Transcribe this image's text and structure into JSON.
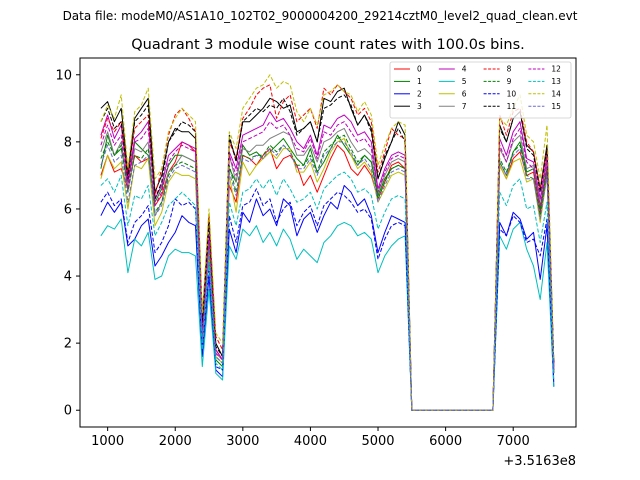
{
  "figure": {
    "suptitle": "Data file: modeM0/AS1A10_102T02_9000004200_29214cztM0_level2_quad_clean.evt"
  },
  "chart_data": {
    "type": "line",
    "title": "Quadrant 3 module wise count rates with 100.0s bins.",
    "xlabel": "",
    "ylabel": "",
    "x_offset_label": "+3.5163e8",
    "xlim": [
      591,
      7929
    ],
    "ylim": [
      -0.5,
      10.5
    ],
    "xticks": [
      1000,
      2000,
      3000,
      4000,
      5000,
      6000,
      7000
    ],
    "yticks": [
      0,
      2,
      4,
      6,
      8,
      10
    ],
    "grid": false,
    "legend": {
      "placement": "top-right",
      "ncol": 4
    },
    "x": [
      900,
      1000,
      1100,
      1200,
      1300,
      1400,
      1500,
      1600,
      1700,
      1800,
      1900,
      2000,
      2100,
      2200,
      2300,
      2400,
      2500,
      2600,
      2700,
      2800,
      2900,
      3000,
      3100,
      3200,
      3300,
      3400,
      3500,
      3600,
      3700,
      3800,
      3900,
      4000,
      4100,
      4200,
      4300,
      4400,
      4500,
      4600,
      4700,
      4800,
      4900,
      5000,
      5100,
      5200,
      5300,
      5400,
      5500,
      5600,
      5700,
      5800,
      5900,
      6000,
      6100,
      6200,
      6300,
      6400,
      6500,
      6600,
      6700,
      6800,
      6900,
      7000,
      7100,
      7200,
      7300,
      7400,
      7500,
      7600
    ],
    "series": [
      {
        "name": "0",
        "color": "#ff0000",
        "dash": false,
        "values": [
          7.0,
          7.6,
          7.1,
          7.2,
          6.6,
          7.6,
          7.4,
          7.5,
          6.1,
          6.4,
          7.1,
          7.4,
          8.0,
          7.9,
          7.7,
          2.3,
          4.9,
          1.8,
          1.5,
          6.7,
          6.2,
          7.6,
          7.5,
          7.3,
          7.6,
          7.8,
          7.2,
          7.5,
          7.6,
          7.3,
          6.7,
          7.0,
          6.5,
          7.0,
          7.5,
          7.9,
          7.7,
          7.2,
          7.0,
          7.3,
          7.0,
          6.3,
          6.8,
          7.3,
          7.4,
          7.2,
          0.0,
          0.0,
          0.0,
          0.0,
          0.0,
          0.0,
          0.0,
          0.0,
          0.0,
          0.0,
          0.0,
          0.0,
          0.0,
          7.3,
          6.9,
          7.5,
          7.7,
          7.0,
          7.1,
          5.9,
          7.2,
          1.2
        ]
      },
      {
        "name": "1",
        "color": "#008000",
        "dash": false,
        "values": [
          7.2,
          8.2,
          7.6,
          7.8,
          6.8,
          8.0,
          7.8,
          7.6,
          6.2,
          6.6,
          7.3,
          7.6,
          7.6,
          7.5,
          7.4,
          2.0,
          4.6,
          1.5,
          1.3,
          7.2,
          6.8,
          7.9,
          7.6,
          7.7,
          7.5,
          7.7,
          7.9,
          8.1,
          7.8,
          7.5,
          7.3,
          7.8,
          7.1,
          7.4,
          7.8,
          8.2,
          7.9,
          7.6,
          7.3,
          7.6,
          7.4,
          6.4,
          6.9,
          7.2,
          7.3,
          7.2,
          0.0,
          0.0,
          0.0,
          0.0,
          0.0,
          0.0,
          0.0,
          0.0,
          0.0,
          0.0,
          0.0,
          0.0,
          0.0,
          7.4,
          7.0,
          7.7,
          8.0,
          7.1,
          7.2,
          6.0,
          7.3,
          1.1
        ]
      },
      {
        "name": "2",
        "color": "#0000ff",
        "dash": false,
        "values": [
          5.8,
          6.2,
          5.9,
          6.2,
          4.9,
          5.1,
          5.5,
          5.7,
          4.3,
          4.6,
          5.0,
          5.3,
          5.8,
          5.6,
          5.5,
          1.6,
          4.0,
          1.2,
          1.0,
          5.4,
          4.7,
          5.9,
          5.6,
          6.3,
          5.8,
          6.0,
          5.5,
          6.3,
          6.1,
          5.2,
          5.7,
          5.9,
          5.3,
          5.8,
          6.2,
          6.0,
          6.7,
          6.5,
          6.1,
          6.3,
          5.8,
          4.7,
          5.3,
          5.8,
          5.7,
          5.6,
          0.0,
          0.0,
          0.0,
          0.0,
          0.0,
          0.0,
          0.0,
          0.0,
          0.0,
          0.0,
          0.0,
          0.0,
          0.0,
          5.6,
          5.2,
          5.9,
          5.7,
          5.1,
          5.3,
          3.9,
          5.5,
          0.7
        ]
      },
      {
        "name": "3",
        "color": "#000000",
        "dash": false,
        "values": [
          9.0,
          9.2,
          8.6,
          9.0,
          7.1,
          8.7,
          9.0,
          9.3,
          6.5,
          7.0,
          8.0,
          8.4,
          8.3,
          8.3,
          8.1,
          2.7,
          5.8,
          2.0,
          1.6,
          8.1,
          7.5,
          8.6,
          8.6,
          8.8,
          9.0,
          9.3,
          9.2,
          9.0,
          9.1,
          8.3,
          8.4,
          8.6,
          8.0,
          9.3,
          9.2,
          9.5,
          9.6,
          9.0,
          8.5,
          8.8,
          8.4,
          6.9,
          7.5,
          8.0,
          8.6,
          8.2,
          0.0,
          0.0,
          0.0,
          0.0,
          0.0,
          0.0,
          0.0,
          0.0,
          0.0,
          0.0,
          0.0,
          0.0,
          0.0,
          8.5,
          8.0,
          8.7,
          8.9,
          7.9,
          7.7,
          6.6,
          7.9,
          1.4
        ]
      },
      {
        "name": "4",
        "color": "#bf00bf",
        "dash": false,
        "values": [
          8.2,
          8.8,
          8.1,
          8.5,
          6.8,
          8.1,
          8.3,
          8.6,
          6.3,
          6.7,
          7.6,
          7.8,
          8.0,
          7.9,
          7.8,
          2.3,
          5.2,
          1.8,
          1.5,
          7.7,
          7.2,
          8.2,
          8.3,
          8.4,
          8.5,
          8.9,
          8.6,
          8.7,
          8.4,
          8.0,
          7.8,
          8.2,
          7.6,
          8.5,
          8.4,
          8.7,
          8.8,
          8.6,
          8.2,
          8.3,
          8.0,
          6.6,
          7.2,
          7.6,
          7.7,
          7.6,
          0.0,
          0.0,
          0.0,
          0.0,
          0.0,
          0.0,
          0.0,
          0.0,
          0.0,
          0.0,
          0.0,
          0.0,
          0.0,
          8.1,
          7.6,
          8.3,
          8.6,
          7.5,
          7.4,
          6.3,
          7.6,
          1.3
        ]
      },
      {
        "name": "5",
        "color": "#00bfbf",
        "dash": false,
        "values": [
          5.2,
          5.5,
          5.4,
          5.7,
          4.1,
          5.1,
          4.9,
          5.3,
          3.9,
          4.0,
          4.6,
          4.8,
          4.7,
          4.7,
          4.6,
          1.3,
          3.6,
          1.1,
          0.9,
          4.9,
          4.5,
          5.4,
          5.2,
          5.5,
          5.0,
          5.3,
          4.9,
          5.4,
          5.1,
          4.5,
          4.8,
          4.6,
          4.4,
          5.0,
          5.2,
          5.5,
          5.6,
          5.5,
          5.2,
          5.3,
          5.1,
          4.1,
          4.6,
          4.9,
          5.1,
          5.2,
          0.0,
          0.0,
          0.0,
          0.0,
          0.0,
          0.0,
          0.0,
          0.0,
          0.0,
          0.0,
          0.0,
          0.0,
          0.0,
          5.2,
          4.8,
          5.4,
          5.6,
          4.8,
          4.3,
          3.3,
          5.0,
          0.7
        ]
      },
      {
        "name": "6",
        "color": "#bfbf00",
        "dash": false,
        "values": [
          6.9,
          7.6,
          7.2,
          7.4,
          6.0,
          7.3,
          7.2,
          7.5,
          5.5,
          5.9,
          6.8,
          7.1,
          7.0,
          7.0,
          6.9,
          2.1,
          4.7,
          1.6,
          1.4,
          7.0,
          5.9,
          7.4,
          7.0,
          7.3,
          7.5,
          7.7,
          7.5,
          7.8,
          7.8,
          7.1,
          7.1,
          7.4,
          6.8,
          7.2,
          7.7,
          8.0,
          8.1,
          7.6,
          7.2,
          7.4,
          7.1,
          6.2,
          6.6,
          7.0,
          7.1,
          7.0,
          0.0,
          0.0,
          0.0,
          0.0,
          0.0,
          0.0,
          0.0,
          0.0,
          0.0,
          0.0,
          0.0,
          0.0,
          0.0,
          7.3,
          6.9,
          7.4,
          7.5,
          6.8,
          6.9,
          5.6,
          7.0,
          1.1
        ]
      },
      {
        "name": "7",
        "color": "#808080",
        "dash": false,
        "values": [
          7.7,
          8.3,
          7.6,
          8.0,
          6.5,
          7.8,
          7.7,
          8.0,
          5.8,
          6.2,
          7.1,
          7.3,
          7.6,
          7.5,
          7.4,
          2.2,
          5.1,
          1.7,
          1.5,
          7.6,
          6.8,
          7.8,
          7.7,
          7.9,
          7.9,
          8.1,
          8.2,
          8.3,
          8.2,
          7.6,
          7.6,
          7.9,
          7.4,
          8.0,
          8.1,
          8.3,
          8.4,
          8.0,
          7.7,
          7.8,
          7.6,
          6.5,
          7.0,
          7.4,
          7.5,
          7.4,
          0.0,
          0.0,
          0.0,
          0.0,
          0.0,
          0.0,
          0.0,
          0.0,
          0.0,
          0.0,
          0.0,
          0.0,
          0.0,
          7.8,
          7.4,
          8.0,
          8.2,
          7.2,
          7.3,
          6.1,
          7.4,
          1.2
        ]
      },
      {
        "name": "8",
        "color": "#ff0000",
        "dash": true,
        "values": [
          8.1,
          8.7,
          8.3,
          8.6,
          7.0,
          8.4,
          8.6,
          8.8,
          6.4,
          7.2,
          8.2,
          8.8,
          9.0,
          8.7,
          8.3,
          2.8,
          5.8,
          2.2,
          1.8,
          8.0,
          7.5,
          8.7,
          9.0,
          9.4,
          9.6,
          9.7,
          8.7,
          9.2,
          9.4,
          8.6,
          8.8,
          9.0,
          8.4,
          9.6,
          9.4,
          9.7,
          9.5,
          9.3,
          8.8,
          9.0,
          8.6,
          7.1,
          7.7,
          8.4,
          8.2,
          8.1,
          0.0,
          0.0,
          0.0,
          0.0,
          0.0,
          0.0,
          0.0,
          0.0,
          0.0,
          0.0,
          0.0,
          0.0,
          0.0,
          8.8,
          8.2,
          8.9,
          9.0,
          8.0,
          7.7,
          6.6,
          7.8,
          1.4
        ]
      },
      {
        "name": "9",
        "color": "#008000",
        "dash": true,
        "values": [
          7.5,
          8.0,
          7.6,
          7.9,
          6.5,
          7.6,
          7.5,
          7.8,
          5.9,
          6.2,
          7.0,
          7.3,
          7.4,
          7.3,
          7.2,
          2.1,
          4.9,
          1.6,
          1.4,
          7.3,
          6.5,
          7.6,
          7.5,
          7.6,
          7.6,
          7.9,
          7.7,
          7.9,
          7.7,
          7.3,
          7.3,
          7.6,
          7.1,
          7.7,
          7.9,
          8.1,
          8.2,
          7.8,
          7.4,
          7.6,
          7.4,
          6.3,
          6.8,
          7.2,
          7.3,
          7.2,
          0.0,
          0.0,
          0.0,
          0.0,
          0.0,
          0.0,
          0.0,
          0.0,
          0.0,
          0.0,
          0.0,
          0.0,
          0.0,
          7.5,
          7.1,
          7.7,
          7.9,
          7.0,
          6.9,
          5.8,
          7.1,
          1.1
        ]
      },
      {
        "name": "10",
        "color": "#0000ff",
        "dash": true,
        "values": [
          6.2,
          6.5,
          6.1,
          6.3,
          5.0,
          5.6,
          5.8,
          6.1,
          4.7,
          5.0,
          5.5,
          6.3,
          6.1,
          6.2,
          6.0,
          1.8,
          4.3,
          1.3,
          1.2,
          5.8,
          5.0,
          6.1,
          6.2,
          6.6,
          6.1,
          6.3,
          5.6,
          6.0,
          6.2,
          5.5,
          5.9,
          6.1,
          5.5,
          6.1,
          6.3,
          6.5,
          6.4,
          6.2,
          5.9,
          6.0,
          5.7,
          4.5,
          5.1,
          5.5,
          5.6,
          5.5,
          0.0,
          0.0,
          0.0,
          0.0,
          0.0,
          0.0,
          0.0,
          0.0,
          0.0,
          0.0,
          0.0,
          0.0,
          0.0,
          5.4,
          5.2,
          5.8,
          5.6,
          5.0,
          5.1,
          4.6,
          5.7,
          0.8
        ]
      },
      {
        "name": "11",
        "color": "#000000",
        "dash": true,
        "values": [
          8.6,
          9.0,
          8.4,
          8.6,
          6.9,
          8.6,
          8.8,
          9.1,
          6.3,
          6.8,
          8.0,
          8.3,
          8.6,
          8.5,
          8.3,
          2.5,
          5.6,
          1.9,
          1.6,
          8.2,
          7.4,
          8.6,
          8.8,
          9.0,
          8.9,
          9.1,
          9.0,
          9.3,
          8.9,
          8.2,
          8.4,
          8.6,
          8.0,
          9.0,
          9.1,
          9.3,
          9.4,
          9.1,
          8.5,
          8.8,
          8.3,
          6.9,
          7.6,
          8.0,
          8.4,
          8.0,
          0.0,
          0.0,
          0.0,
          0.0,
          0.0,
          0.0,
          0.0,
          0.0,
          0.0,
          0.0,
          0.0,
          0.0,
          0.0,
          8.4,
          8.0,
          8.7,
          8.9,
          7.8,
          7.6,
          6.5,
          7.8,
          1.4
        ]
      },
      {
        "name": "12",
        "color": "#bf00bf",
        "dash": true,
        "values": [
          7.9,
          8.5,
          7.9,
          8.2,
          6.6,
          8.0,
          8.1,
          8.4,
          6.1,
          6.5,
          7.4,
          7.7,
          7.9,
          7.8,
          7.7,
          2.2,
          5.1,
          1.7,
          1.5,
          7.6,
          7.0,
          8.0,
          8.1,
          8.2,
          8.3,
          8.6,
          8.4,
          8.5,
          8.2,
          7.8,
          7.7,
          8.1,
          7.5,
          8.3,
          8.2,
          8.5,
          8.6,
          8.3,
          8.0,
          8.1,
          7.8,
          6.5,
          7.1,
          7.5,
          7.6,
          7.5,
          0.0,
          0.0,
          0.0,
          0.0,
          0.0,
          0.0,
          0.0,
          0.0,
          0.0,
          0.0,
          0.0,
          0.0,
          0.0,
          7.9,
          7.4,
          8.1,
          8.4,
          7.4,
          7.2,
          6.1,
          7.4,
          1.2
        ]
      },
      {
        "name": "13",
        "color": "#00bfbf",
        "dash": true,
        "values": [
          6.7,
          6.9,
          6.5,
          7.0,
          5.5,
          6.4,
          6.3,
          6.7,
          5.2,
          5.6,
          6.1,
          6.3,
          6.5,
          6.3,
          6.1,
          1.8,
          4.4,
          1.4,
          1.2,
          6.2,
          5.5,
          6.5,
          6.6,
          6.9,
          6.6,
          6.9,
          6.4,
          6.9,
          6.6,
          6.2,
          6.3,
          6.5,
          6.0,
          6.6,
          6.8,
          7.0,
          7.1,
          6.9,
          6.5,
          6.6,
          6.4,
          5.4,
          5.9,
          6.3,
          6.4,
          6.3,
          0.0,
          0.0,
          0.0,
          0.0,
          0.0,
          0.0,
          0.0,
          0.0,
          0.0,
          0.0,
          0.0,
          0.0,
          0.0,
          6.5,
          6.1,
          6.7,
          6.9,
          6.0,
          6.1,
          5.0,
          6.2,
          0.9
        ]
      },
      {
        "name": "14",
        "color": "#bfbf00",
        "dash": true,
        "values": [
          8.6,
          9.1,
          8.7,
          9.4,
          7.2,
          8.9,
          9.1,
          9.6,
          6.9,
          7.2,
          8.3,
          8.7,
          9.0,
          8.8,
          8.6,
          2.9,
          6.0,
          2.3,
          2.0,
          8.3,
          7.8,
          9.0,
          9.3,
          9.6,
          9.7,
          10.0,
          9.6,
          9.8,
          9.7,
          8.9,
          8.6,
          9.0,
          8.5,
          9.4,
          9.5,
          9.7,
          9.5,
          9.4,
          8.9,
          9.2,
          8.8,
          7.3,
          7.9,
          8.4,
          8.6,
          8.5,
          0.0,
          0.0,
          0.0,
          0.0,
          0.0,
          0.0,
          0.0,
          0.0,
          0.0,
          0.0,
          0.0,
          0.0,
          0.0,
          8.7,
          8.5,
          9.0,
          9.4,
          8.2,
          8.0,
          6.9,
          8.5,
          1.5
        ]
      },
      {
        "name": "15",
        "color": "#6a6ad0",
        "dash": true,
        "values": [
          7.3,
          7.9,
          7.4,
          7.6,
          6.2,
          7.3,
          7.4,
          7.6,
          5.8,
          6.1,
          6.9,
          7.2,
          7.3,
          7.2,
          7.1,
          2.1,
          4.8,
          1.6,
          1.4,
          7.1,
          6.4,
          7.5,
          7.4,
          7.6,
          7.5,
          7.8,
          7.6,
          7.9,
          7.7,
          7.2,
          7.2,
          7.5,
          7.0,
          7.6,
          7.8,
          8.0,
          8.0,
          7.7,
          7.3,
          7.5,
          7.2,
          6.2,
          6.7,
          7.1,
          7.2,
          7.1,
          0.0,
          0.0,
          0.0,
          0.0,
          0.0,
          0.0,
          0.0,
          0.0,
          0.0,
          0.0,
          0.0,
          0.0,
          0.0,
          7.4,
          7.0,
          7.6,
          7.8,
          6.9,
          6.9,
          5.7,
          7.0,
          1.1
        ]
      }
    ]
  }
}
